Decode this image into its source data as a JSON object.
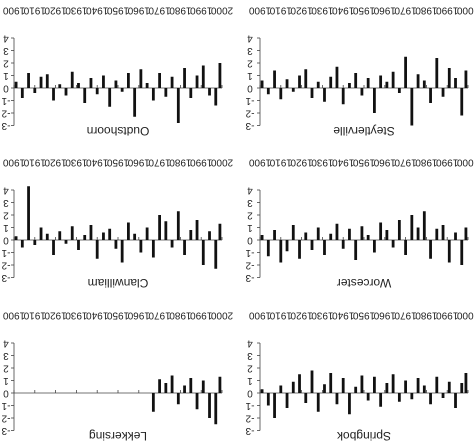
{
  "chart_data": [
    {
      "type": "bar",
      "title": "Oudtshoorn",
      "color": "#111111",
      "x": [
        1901,
        1904,
        1907,
        1910,
        1913,
        1916,
        1919,
        1922,
        1925,
        1928,
        1931,
        1934,
        1937,
        1940,
        1943,
        1946,
        1949,
        1952,
        1955,
        1958,
        1961,
        1964,
        1967,
        1970,
        1973,
        1976,
        1979,
        1982,
        1985,
        1988,
        1991,
        1994,
        1997,
        1999
      ],
      "values": [
        0.5,
        -0.8,
        1.2,
        -0.4,
        0.9,
        1.1,
        -1.0,
        0.3,
        -0.6,
        1.3,
        0.4,
        -1.2,
        0.8,
        -0.5,
        1.0,
        -1.5,
        0.6,
        -0.3,
        1.2,
        -2.3,
        1.5,
        0.4,
        -1.0,
        1.2,
        -0.7,
        0.9,
        -2.8,
        1.6,
        -0.8,
        1.0,
        1.8,
        -0.6,
        -1.4,
        2.0
      ],
      "xlim": [
        1900,
        2000
      ],
      "xticks": [
        1900,
        1910,
        1920,
        1930,
        1940,
        1950,
        1960,
        1970,
        1980,
        1990,
        2000
      ],
      "ylim": [
        -3,
        4
      ],
      "yticks": [
        -3,
        -2,
        -1,
        0,
        1,
        2,
        3,
        4
      ]
    },
    {
      "type": "bar",
      "title": "Steytlerville",
      "color": "#111111",
      "x": [
        1901,
        1904,
        1907,
        1910,
        1913,
        1916,
        1919,
        1922,
        1925,
        1928,
        1931,
        1934,
        1937,
        1940,
        1943,
        1946,
        1949,
        1952,
        1955,
        1958,
        1961,
        1964,
        1967,
        1970,
        1973,
        1976,
        1979,
        1982,
        1985,
        1988,
        1991,
        1994,
        1997,
        1999
      ],
      "values": [
        0.6,
        -0.5,
        1.4,
        -0.9,
        0.7,
        -0.3,
        1.0,
        1.5,
        -0.8,
        0.5,
        -1.1,
        0.9,
        1.7,
        -1.3,
        0.4,
        1.2,
        -0.6,
        0.8,
        -2.0,
        1.0,
        0.5,
        1.3,
        -0.4,
        2.5,
        -3.0,
        1.1,
        0.6,
        -1.2,
        2.4,
        -0.7,
        1.6,
        0.8,
        -2.2,
        1.4
      ],
      "xlim": [
        1900,
        2000
      ],
      "xticks": [
        1900,
        1910,
        1920,
        1930,
        1940,
        1950,
        1960,
        1970,
        1980,
        1990,
        2000
      ],
      "ylim": [
        -3,
        4
      ],
      "yticks": [
        -3,
        -2,
        -1,
        0,
        1,
        2,
        3,
        4
      ]
    },
    {
      "type": "bar",
      "title": "Clanwilliam",
      "color": "#111111",
      "x": [
        1901,
        1904,
        1907,
        1910,
        1913,
        1916,
        1919,
        1922,
        1925,
        1928,
        1931,
        1934,
        1937,
        1940,
        1943,
        1946,
        1949,
        1952,
        1955,
        1958,
        1961,
        1964,
        1967,
        1970,
        1973,
        1976,
        1979,
        1982,
        1985,
        1988,
        1991,
        1994,
        1997,
        1999
      ],
      "values": [
        0.3,
        -0.6,
        4.3,
        -0.4,
        1.0,
        0.5,
        -1.2,
        0.7,
        -0.3,
        1.1,
        -0.8,
        0.4,
        1.2,
        -1.5,
        0.6,
        0.9,
        -0.7,
        -1.8,
        1.4,
        0.5,
        -1.0,
        1.0,
        -1.4,
        2.0,
        1.5,
        -0.6,
        2.3,
        -1.2,
        0.8,
        1.6,
        -2.0,
        0.7,
        -2.3,
        1.3
      ],
      "xlim": [
        1900,
        2000
      ],
      "xticks": [
        1900,
        1910,
        1920,
        1930,
        1940,
        1950,
        1960,
        1970,
        1980,
        1990,
        2000
      ],
      "ylim": [
        -3,
        4
      ],
      "yticks": [
        -3,
        -2,
        -1,
        0,
        1,
        2,
        3,
        4
      ]
    },
    {
      "type": "bar",
      "title": "Worcester",
      "color": "#111111",
      "x": [
        1901,
        1904,
        1907,
        1910,
        1913,
        1916,
        1919,
        1922,
        1925,
        1928,
        1931,
        1934,
        1937,
        1940,
        1943,
        1946,
        1949,
        1952,
        1955,
        1958,
        1961,
        1964,
        1967,
        1970,
        1973,
        1976,
        1979,
        1982,
        1985,
        1988,
        1991,
        1994,
        1997,
        1999
      ],
      "values": [
        0.4,
        -1.3,
        0.8,
        -1.8,
        -0.9,
        1.2,
        -1.5,
        0.6,
        -0.8,
        1.0,
        -1.2,
        0.5,
        1.3,
        -0.7,
        0.9,
        -1.6,
        1.1,
        0.4,
        -1.0,
        1.4,
        0.8,
        -0.6,
        1.6,
        -1.2,
        2.0,
        1.0,
        2.3,
        -1.5,
        0.9,
        1.2,
        -1.8,
        0.6,
        -2.0,
        1.0
      ],
      "xlim": [
        1900,
        2000
      ],
      "xticks": [
        1900,
        1910,
        1920,
        1930,
        1940,
        1950,
        1960,
        1970,
        1980,
        1990,
        2000
      ],
      "ylim": [
        -3,
        4
      ],
      "yticks": [
        -3,
        -2,
        -1,
        0,
        1,
        2,
        3,
        4
      ]
    },
    {
      "type": "bar",
      "title": "Lekkersing",
      "color": "#111111",
      "x": [
        1901,
        1904,
        1907,
        1910,
        1913,
        1916,
        1919,
        1922,
        1925,
        1928,
        1931,
        1934,
        1937,
        1940,
        1943,
        1946,
        1949,
        1952,
        1955,
        1958,
        1961,
        1964,
        1967,
        1970,
        1973,
        1976,
        1979,
        1982,
        1985,
        1988,
        1991,
        1994,
        1997,
        1999
      ],
      "values": [
        null,
        null,
        null,
        null,
        null,
        null,
        null,
        null,
        null,
        null,
        null,
        null,
        null,
        null,
        null,
        null,
        null,
        null,
        null,
        null,
        null,
        null,
        -1.5,
        1.1,
        0.8,
        1.4,
        -0.9,
        0.6,
        1.2,
        -1.3,
        1.0,
        -2.0,
        -2.5,
        1.3
      ],
      "xlim": [
        1900,
        2000
      ],
      "xticks": [
        1900,
        1910,
        1920,
        1930,
        1940,
        1950,
        1960,
        1970,
        1980,
        1990,
        2000
      ],
      "ylim": [
        -3,
        4
      ],
      "yticks": [
        -3,
        -2,
        -1,
        0,
        1,
        2,
        3,
        4
      ]
    },
    {
      "type": "bar",
      "title": "Springbok",
      "color": "#111111",
      "x": [
        1901,
        1904,
        1907,
        1910,
        1913,
        1916,
        1919,
        1922,
        1925,
        1928,
        1931,
        1934,
        1937,
        1940,
        1943,
        1946,
        1949,
        1952,
        1955,
        1958,
        1961,
        1964,
        1967,
        1970,
        1973,
        1976,
        1979,
        1982,
        1985,
        1988,
        1991,
        1994,
        1997,
        1999
      ],
      "values": [
        0.3,
        -1.0,
        -2.0,
        0.6,
        -1.2,
        0.9,
        1.5,
        -0.8,
        1.8,
        -1.5,
        0.7,
        1.6,
        -0.9,
        1.2,
        -1.7,
        0.5,
        1.4,
        -0.6,
        1.3,
        -1.1,
        0.8,
        1.5,
        -0.7,
        1.0,
        -0.5,
        1.2,
        0.6,
        -0.9,
        1.3,
        -0.4,
        0.9,
        -1.2,
        0.8,
        1.6
      ],
      "xlim": [
        1900,
        2000
      ],
      "xticks": [
        1900,
        1910,
        1920,
        1930,
        1940,
        1950,
        1960,
        1970,
        1980,
        1990,
        2000
      ],
      "ylim": [
        -3,
        4
      ],
      "yticks": [
        -3,
        -2,
        -1,
        0,
        1,
        2,
        3,
        4
      ]
    }
  ]
}
